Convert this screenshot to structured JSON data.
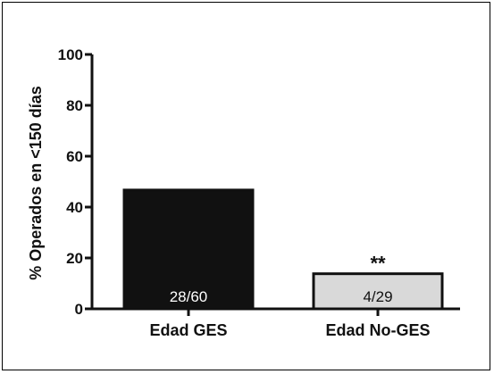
{
  "chart_data": {
    "type": "bar",
    "title": "",
    "xlabel": "",
    "ylabel": "% Operados en <150 días",
    "ylim": [
      0,
      100
    ],
    "yticks": [
      0,
      20,
      40,
      60,
      80,
      100
    ],
    "grid": false,
    "categories": [
      "Edad GES",
      "Edad No-GES"
    ],
    "values": [
      46.7,
      13.8
    ],
    "bar_labels": [
      "28/60",
      "4/29"
    ],
    "annotations": [
      "",
      "**"
    ],
    "colors": {
      "bars": [
        "#111111",
        "#d9d9d9"
      ],
      "bar_label_text": [
        "#ffffff",
        "#111111"
      ],
      "axis": "#111111"
    }
  }
}
